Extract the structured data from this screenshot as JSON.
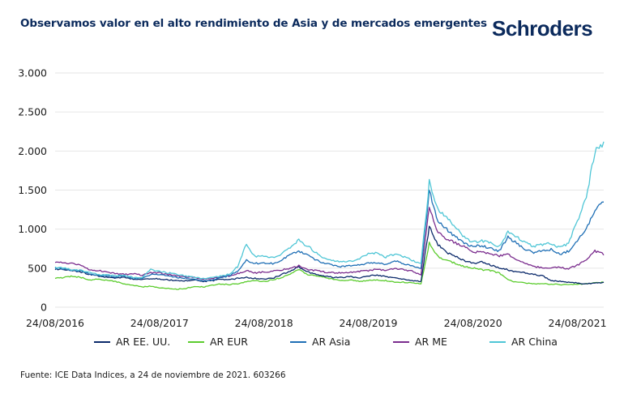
{
  "header": {
    "title": "Observamos valor en el alto rendimiento de Asia y de mercados emergentes",
    "logo_text": "Schroders"
  },
  "footer": {
    "source": "Fuente: ICE Data Indices, a 24 de noviembre de 2021. 603266"
  },
  "colors": {
    "brand": "#0b2a5c",
    "grid": "#e6e6e6"
  },
  "chart_data": {
    "type": "line",
    "title": "Observamos valor en el alto rendimiento de Asia y de mercados emergentes",
    "xlabel": "",
    "ylabel": "",
    "ylim": [
      0,
      3000
    ],
    "yticks": [
      0,
      500,
      1000,
      1500,
      2000,
      2500,
      3000
    ],
    "ytick_labels": [
      "0",
      "500",
      "1.000",
      "1.500",
      "2.000",
      "2.500",
      "3.000"
    ],
    "xlim": [
      "2016-08-24",
      "2021-11-24"
    ],
    "xtick_labels": [
      "24/08/2016",
      "24/08/2017",
      "24/08/2018",
      "24/08/2019",
      "24/08/2020",
      "24/08/2021"
    ],
    "xtick_dates": [
      "2016-08-24",
      "2017-08-24",
      "2018-08-24",
      "2019-08-24",
      "2020-08-24",
      "2021-08-24"
    ],
    "grid": "horizontal",
    "legend_position": "bottom",
    "x": [
      "2016-08",
      "2016-09",
      "2016-10",
      "2016-11",
      "2016-12",
      "2017-01",
      "2017-02",
      "2017-03",
      "2017-04",
      "2017-05",
      "2017-06",
      "2017-07",
      "2017-08",
      "2017-09",
      "2017-10",
      "2017-11",
      "2017-12",
      "2018-01",
      "2018-02",
      "2018-03",
      "2018-04",
      "2018-05",
      "2018-06",
      "2018-07",
      "2018-08",
      "2018-09",
      "2018-10",
      "2018-11",
      "2018-12",
      "2019-01",
      "2019-02",
      "2019-03",
      "2019-04",
      "2019-05",
      "2019-06",
      "2019-07",
      "2019-08",
      "2019-09",
      "2019-10",
      "2019-11",
      "2019-12",
      "2020-01",
      "2020-02",
      "2020-03",
      "2020-04",
      "2020-05",
      "2020-06",
      "2020-07",
      "2020-08",
      "2020-09",
      "2020-10",
      "2020-11",
      "2020-12",
      "2021-01",
      "2021-02",
      "2021-03",
      "2021-04",
      "2021-05",
      "2021-06",
      "2021-07",
      "2021-08",
      "2021-09",
      "2021-10",
      "2021-11"
    ],
    "series": [
      {
        "name": "AR EE. UU.",
        "color": "#0b2a6b",
        "values": [
          490,
          480,
          470,
          450,
          420,
          400,
          380,
          370,
          380,
          360,
          350,
          370,
          360,
          350,
          340,
          340,
          350,
          330,
          340,
          360,
          350,
          370,
          380,
          370,
          360,
          370,
          420,
          460,
          520,
          450,
          420,
          400,
          380,
          380,
          390,
          370,
          400,
          410,
          390,
          380,
          360,
          340,
          330,
          1050,
          800,
          700,
          650,
          600,
          560,
          580,
          540,
          500,
          480,
          450,
          440,
          420,
          400,
          340,
          330,
          320,
          310,
          300,
          310,
          315
        ]
      },
      {
        "name": "AR EUR",
        "color": "#5ccc2e",
        "values": [
          370,
          380,
          400,
          380,
          350,
          360,
          340,
          330,
          300,
          280,
          260,
          270,
          250,
          240,
          230,
          240,
          270,
          260,
          280,
          300,
          290,
          300,
          330,
          340,
          330,
          350,
          380,
          420,
          480,
          420,
          400,
          380,
          360,
          340,
          350,
          330,
          340,
          350,
          340,
          320,
          320,
          310,
          300,
          820,
          650,
          600,
          560,
          520,
          500,
          480,
          470,
          440,
          350,
          320,
          310,
          300,
          300,
          295,
          290,
          290,
          295,
          300,
          310,
          320
        ]
      },
      {
        "name": "AR Asia",
        "color": "#1f6fb5",
        "values": [
          500,
          490,
          470,
          460,
          430,
          410,
          400,
          390,
          400,
          370,
          370,
          420,
          420,
          400,
          380,
          370,
          360,
          340,
          350,
          380,
          400,
          460,
          600,
          560,
          570,
          560,
          600,
          680,
          710,
          680,
          600,
          560,
          540,
          520,
          530,
          550,
          560,
          570,
          540,
          600,
          560,
          530,
          500,
          1500,
          1100,
          1000,
          900,
          820,
          780,
          790,
          750,
          720,
          900,
          820,
          740,
          700,
          720,
          740,
          680,
          720,
          860,
          1000,
          1250,
          1350
        ]
      },
      {
        "name": "AR ME",
        "color": "#7b2d8e",
        "values": [
          580,
          570,
          560,
          530,
          480,
          470,
          450,
          430,
          420,
          430,
          410,
          440,
          440,
          420,
          400,
          390,
          380,
          360,
          370,
          390,
          400,
          430,
          470,
          440,
          450,
          460,
          480,
          500,
          530,
          480,
          470,
          450,
          440,
          440,
          450,
          460,
          470,
          490,
          470,
          500,
          480,
          460,
          420,
          1300,
          950,
          880,
          820,
          780,
          700,
          710,
          680,
          660,
          680,
          610,
          560,
          520,
          510,
          500,
          510,
          490,
          540,
          600,
          720,
          680
        ]
      },
      {
        "name": "AR China",
        "color": "#4fc6d6",
        "values": [
          510,
          500,
          480,
          470,
          440,
          420,
          410,
          400,
          410,
          380,
          380,
          480,
          460,
          440,
          420,
          400,
          380,
          370,
          380,
          400,
          420,
          520,
          800,
          650,
          660,
          640,
          680,
          760,
          860,
          780,
          700,
          620,
          600,
          580,
          590,
          620,
          680,
          700,
          640,
          680,
          650,
          600,
          560,
          1620,
          1250,
          1150,
          1020,
          900,
          830,
          850,
          820,
          780,
          960,
          900,
          820,
          780,
          800,
          820,
          760,
          820,
          1100,
          1400,
          2000,
          2100
        ]
      }
    ]
  },
  "legend": {
    "items": [
      {
        "label": "AR EE. UU.",
        "color": "#0b2a6b"
      },
      {
        "label": "AR EUR",
        "color": "#5ccc2e"
      },
      {
        "label": "AR Asia",
        "color": "#1f6fb5"
      },
      {
        "label": "AR ME",
        "color": "#7b2d8e"
      },
      {
        "label": "AR China",
        "color": "#4fc6d6"
      }
    ]
  }
}
